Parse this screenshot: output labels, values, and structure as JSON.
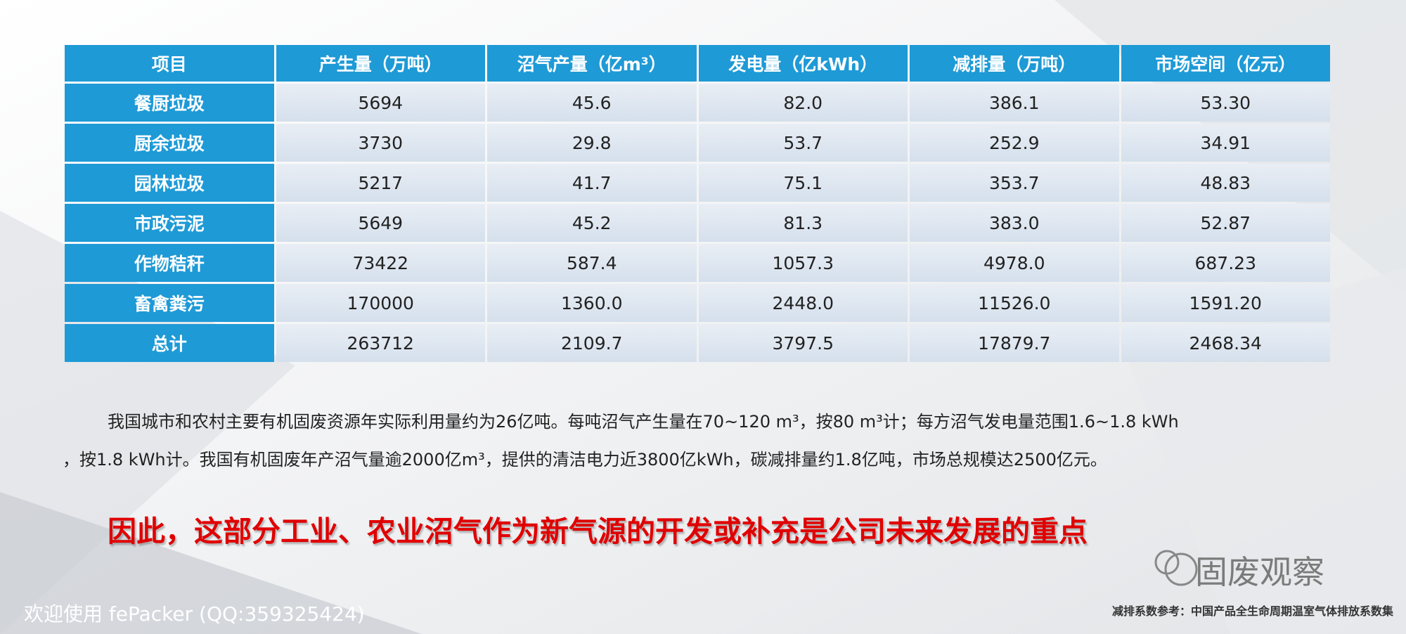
{
  "table": {
    "header": [
      "项目",
      "产生量（万吨）",
      "沼气产量（亿m³）",
      "发电量（亿kWh）",
      "减排量（万吨）",
      "市场空间（亿元）"
    ],
    "rows": [
      [
        "餐厨垃圾",
        "5694",
        "45.6",
        "82.0",
        "386.1",
        "53.30"
      ],
      [
        "厨余垃圾",
        "3730",
        "29.8",
        "53.7",
        "252.9",
        "34.91"
      ],
      [
        "园林垃圾",
        "5217",
        "41.7",
        "75.1",
        "353.7",
        "48.83"
      ],
      [
        "市政污泥",
        "5649",
        "45.2",
        "81.3",
        "383.0",
        "52.87"
      ],
      [
        "作物秸秆",
        "73422",
        "587.4",
        "1057.3",
        "4978.0",
        "687.23"
      ],
      [
        "畜禽粪污",
        "170000",
        "1360.0",
        "2448.0",
        "11526.0",
        "1591.20"
      ],
      [
        "总计",
        "263712",
        "2109.7",
        "3797.5",
        "17879.7",
        "2468.34"
      ]
    ]
  },
  "paragraph": [
    "我国城市和农村主要有机固废资源年实际利用量约为26亿吨。每吨沼气产生量在70~120 m³，按80 m³计；每方沼气发电量范围1.6~1.8 kWh",
    "，按1.8 kWh计。我国有机固废年产沼气量逾2000亿m³，提供的清洁电力近3800亿kWh，碳减排量约1.8亿吨，市场总规模达2500亿元。"
  ],
  "headline": "因此，这部分工业、农业沼气作为新气源的开发或补充是公司未来发展的重点",
  "watermark": "固废观察",
  "footer_left": "欢迎使用 fePacker (QQ:359325424)",
  "footer_right": "减排系数参考：中国产品全生命周期温室气体排放系数集"
}
